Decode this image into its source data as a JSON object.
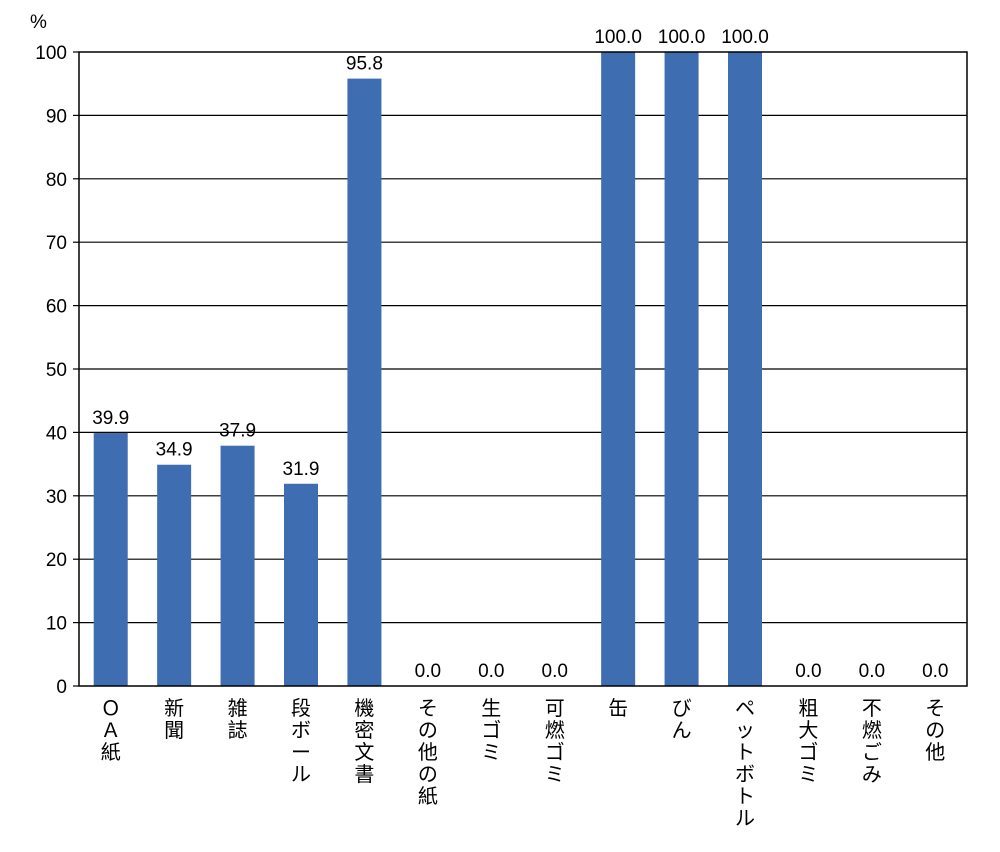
{
  "chart_data": {
    "type": "bar",
    "unit_label": "%",
    "categories": [
      "ＯＡ紙",
      "新聞",
      "雑誌",
      "段ボール",
      "機密文書",
      "その他の紙",
      "生ゴミ",
      "可燃ゴミ",
      "缶",
      "びん",
      "ペットボトル",
      "粗大ゴミ",
      "不燃ごみ",
      "その他"
    ],
    "values": [
      39.9,
      34.9,
      37.9,
      31.9,
      95.8,
      0.0,
      0.0,
      0.0,
      100.0,
      100.0,
      100.0,
      0.0,
      0.0,
      0.0
    ],
    "value_labels": [
      "39.9",
      "34.9",
      "37.9",
      "31.9",
      "95.8",
      "0.0",
      "0.0",
      "0.0",
      "100.0",
      "100.0",
      "100.0",
      "0.0",
      "0.0",
      "0.0"
    ],
    "ylim": [
      0,
      100
    ],
    "yticks": [
      "0",
      "10",
      "20",
      "30",
      "40",
      "50",
      "60",
      "70",
      "80",
      "90",
      "100"
    ],
    "grid": true,
    "bar_color": "#3f6db1"
  }
}
